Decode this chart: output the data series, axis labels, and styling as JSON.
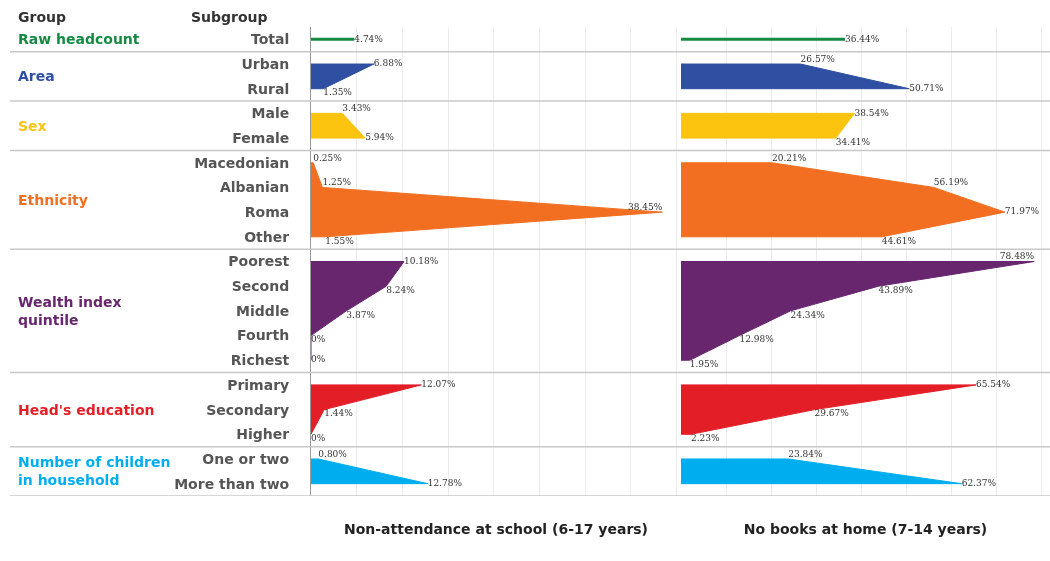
{
  "chart_data": [
    {
      "type": "area",
      "orientation": "horizontal",
      "xlabel": "Non-attendance at school (6-17 years)",
      "annotations": [
        "Group",
        "Subgroup"
      ],
      "categories": [
        "Total",
        "Urban",
        "Rural",
        "Male",
        "Female",
        "Macedonian",
        "Albanian",
        "Roma",
        "Other",
        "Poorest",
        "Second",
        "Middle",
        "Fourth",
        "Richest",
        "Primary",
        "Secondary",
        "Higher",
        "One or two",
        "More than two"
      ],
      "series": [
        {
          "name": "Raw headcount",
          "type": "bar",
          "color": "#168a43",
          "values": [
            4.74,
            null,
            null,
            null,
            null,
            null,
            null,
            null,
            null,
            null,
            null,
            null,
            null,
            null,
            null,
            null,
            null,
            null,
            null
          ],
          "value_labels": [
            "4.74%",
            null,
            null,
            null,
            null,
            null,
            null,
            null,
            null,
            null,
            null,
            null,
            null,
            null,
            null,
            null,
            null,
            null,
            null
          ]
        },
        {
          "name": "Area",
          "color": "#2f4fa2",
          "values": [
            null,
            6.88,
            1.35,
            null,
            null,
            null,
            null,
            null,
            null,
            null,
            null,
            null,
            null,
            null,
            null,
            null,
            null,
            null,
            null
          ],
          "value_labels": [
            null,
            "6.88%",
            "1.35%",
            null,
            null,
            null,
            null,
            null,
            null,
            null,
            null,
            null,
            null,
            null,
            null,
            null,
            null,
            null,
            null
          ]
        },
        {
          "name": "Sex",
          "color": "#fcc30f",
          "values": [
            null,
            null,
            null,
            3.43,
            5.94,
            null,
            null,
            null,
            null,
            null,
            null,
            null,
            null,
            null,
            null,
            null,
            null,
            null,
            null
          ],
          "value_labels": [
            null,
            null,
            null,
            "3.43%",
            "5.94%",
            null,
            null,
            null,
            null,
            null,
            null,
            null,
            null,
            null,
            null,
            null,
            null,
            null,
            null
          ]
        },
        {
          "name": "Ethnicity",
          "color": "#f26f21",
          "values": [
            null,
            null,
            null,
            null,
            null,
            0.25,
            1.25,
            38.45,
            1.55,
            null,
            null,
            null,
            null,
            null,
            null,
            null,
            null,
            null,
            null
          ],
          "value_labels": [
            null,
            null,
            null,
            null,
            null,
            "0.25%",
            "1.25%",
            "38.45%",
            "1.55%",
            null,
            null,
            null,
            null,
            null,
            null,
            null,
            null,
            null,
            null
          ]
        },
        {
          "name": "Wealth index quintile",
          "color": "#68266f",
          "values": [
            null,
            null,
            null,
            null,
            null,
            null,
            null,
            null,
            null,
            10.18,
            8.24,
            3.87,
            0,
            0,
            null,
            null,
            null,
            null,
            null
          ],
          "value_labels": [
            null,
            null,
            null,
            null,
            null,
            null,
            null,
            null,
            null,
            "10.18%",
            "8.24%",
            "3.87%",
            "0%",
            "0%",
            null,
            null,
            null,
            null,
            null
          ]
        },
        {
          "name": "Head's education",
          "color": "#e41e26",
          "values": [
            null,
            null,
            null,
            null,
            null,
            null,
            null,
            null,
            null,
            null,
            null,
            null,
            null,
            null,
            12.07,
            1.44,
            0,
            null,
            null
          ],
          "value_labels": [
            null,
            null,
            null,
            null,
            null,
            null,
            null,
            null,
            null,
            null,
            null,
            null,
            null,
            null,
            "12.07%",
            "1.44%",
            "0%",
            null,
            null
          ]
        },
        {
          "name": "Number of children in household",
          "color": "#00aeef",
          "values": [
            null,
            null,
            null,
            null,
            null,
            null,
            null,
            null,
            null,
            null,
            null,
            null,
            null,
            null,
            null,
            null,
            null,
            0.8,
            12.78
          ],
          "value_labels": [
            null,
            null,
            null,
            null,
            null,
            null,
            null,
            null,
            null,
            null,
            null,
            null,
            null,
            null,
            null,
            null,
            null,
            "0.80%",
            "12.78%"
          ]
        }
      ],
      "xlim": [
        0,
        40.5
      ],
      "xticks": [
        {
          "value": 0,
          "label": null
        },
        {
          "value": 5,
          "label": null
        },
        {
          "value": 10,
          "label": null
        },
        {
          "value": 15,
          "label": null
        },
        {
          "value": 20,
          "label": null
        },
        {
          "value": 25,
          "label": null
        },
        {
          "value": 30,
          "label": null
        },
        {
          "value": 35,
          "label": null
        },
        {
          "value": 40,
          "label": null
        }
      ],
      "grid": "x",
      "tick_labels": "y"
    },
    {
      "type": "area",
      "orientation": "horizontal",
      "xlabel": "No books at home (7-14 years)",
      "categories": [
        null,
        null,
        null,
        null,
        null,
        null,
        null,
        null,
        null,
        null,
        null,
        null,
        null,
        null,
        null,
        null,
        null,
        null,
        null
      ],
      "series": [
        {
          "type": "bar",
          "color": "#168a43",
          "values": [
            36.44,
            null,
            null,
            null,
            null,
            null,
            null,
            null,
            null,
            null,
            null,
            null,
            null,
            null,
            null,
            null,
            null,
            null,
            null
          ],
          "value_labels": [
            "36.44%",
            null,
            null,
            null,
            null,
            null,
            null,
            null,
            null,
            null,
            null,
            null,
            null,
            null,
            null,
            null,
            null,
            null,
            null
          ]
        },
        {
          "color": "#2f4fa2",
          "values": [
            null,
            26.57,
            50.71,
            null,
            null,
            null,
            null,
            null,
            null,
            null,
            null,
            null,
            null,
            null,
            null,
            null,
            null,
            null,
            null
          ],
          "value_labels": [
            null,
            "26.57%",
            "50.71%",
            null,
            null,
            null,
            null,
            null,
            null,
            null,
            null,
            null,
            null,
            null,
            null,
            null,
            null,
            null,
            null
          ]
        },
        {
          "color": "#fcc30f",
          "values": [
            null,
            null,
            null,
            38.54,
            34.41,
            null,
            null,
            null,
            null,
            null,
            null,
            null,
            null,
            null,
            null,
            null,
            null,
            null,
            null
          ],
          "value_labels": [
            null,
            null,
            null,
            "38.54%",
            "34.41%",
            null,
            null,
            null,
            null,
            null,
            null,
            null,
            null,
            null,
            null,
            null,
            null,
            null,
            null
          ]
        },
        {
          "color": "#f26f21",
          "values": [
            null,
            null,
            null,
            null,
            null,
            20.21,
            56.19,
            71.97,
            44.61,
            null,
            null,
            null,
            null,
            null,
            null,
            null,
            null,
            null,
            null
          ],
          "value_labels": [
            null,
            null,
            null,
            null,
            null,
            "20.21%",
            "56.19%",
            "71.97%",
            "44.61%",
            null,
            null,
            null,
            null,
            null,
            null,
            null,
            null,
            null,
            null
          ]
        },
        {
          "color": "#68266f",
          "values": [
            null,
            null,
            null,
            null,
            null,
            null,
            null,
            null,
            null,
            78.48,
            43.89,
            24.34,
            12.98,
            1.95,
            null,
            null,
            null,
            null,
            null
          ],
          "value_labels": [
            null,
            null,
            null,
            null,
            null,
            null,
            null,
            null,
            null,
            "78.48%",
            "43.89%",
            "24.34%",
            "12.98%",
            "1.95%",
            null,
            null,
            null,
            null,
            null
          ]
        },
        {
          "color": "#e41e26",
          "values": [
            null,
            null,
            null,
            null,
            null,
            null,
            null,
            null,
            null,
            null,
            null,
            null,
            null,
            null,
            65.54,
            29.67,
            2.23,
            null,
            null
          ],
          "value_labels": [
            null,
            null,
            null,
            null,
            null,
            null,
            null,
            null,
            null,
            null,
            null,
            null,
            null,
            null,
            "65.54%",
            "29.67%",
            "2.23%",
            null,
            null
          ]
        },
        {
          "color": "#00aeef",
          "values": [
            null,
            null,
            null,
            null,
            null,
            null,
            null,
            null,
            null,
            null,
            null,
            null,
            null,
            null,
            null,
            null,
            null,
            23.84,
            62.37
          ],
          "value_labels": [
            null,
            null,
            null,
            null,
            null,
            null,
            null,
            null,
            null,
            null,
            null,
            null,
            null,
            null,
            null,
            null,
            null,
            "23.84%",
            "62.37%"
          ]
        }
      ],
      "xlim": [
        0,
        82
      ],
      "xticks": [
        {
          "value": 0,
          "label": null
        },
        {
          "value": 10,
          "label": null
        },
        {
          "value": 20,
          "label": null
        },
        {
          "value": 30,
          "label": null
        },
        {
          "value": 40,
          "label": null
        },
        {
          "value": 50,
          "label": null
        },
        {
          "value": 60,
          "label": null
        },
        {
          "value": 70,
          "label": null
        },
        {
          "value": 80,
          "label": null
        }
      ],
      "grid": "x",
      "tick_labels": false
    }
  ]
}
